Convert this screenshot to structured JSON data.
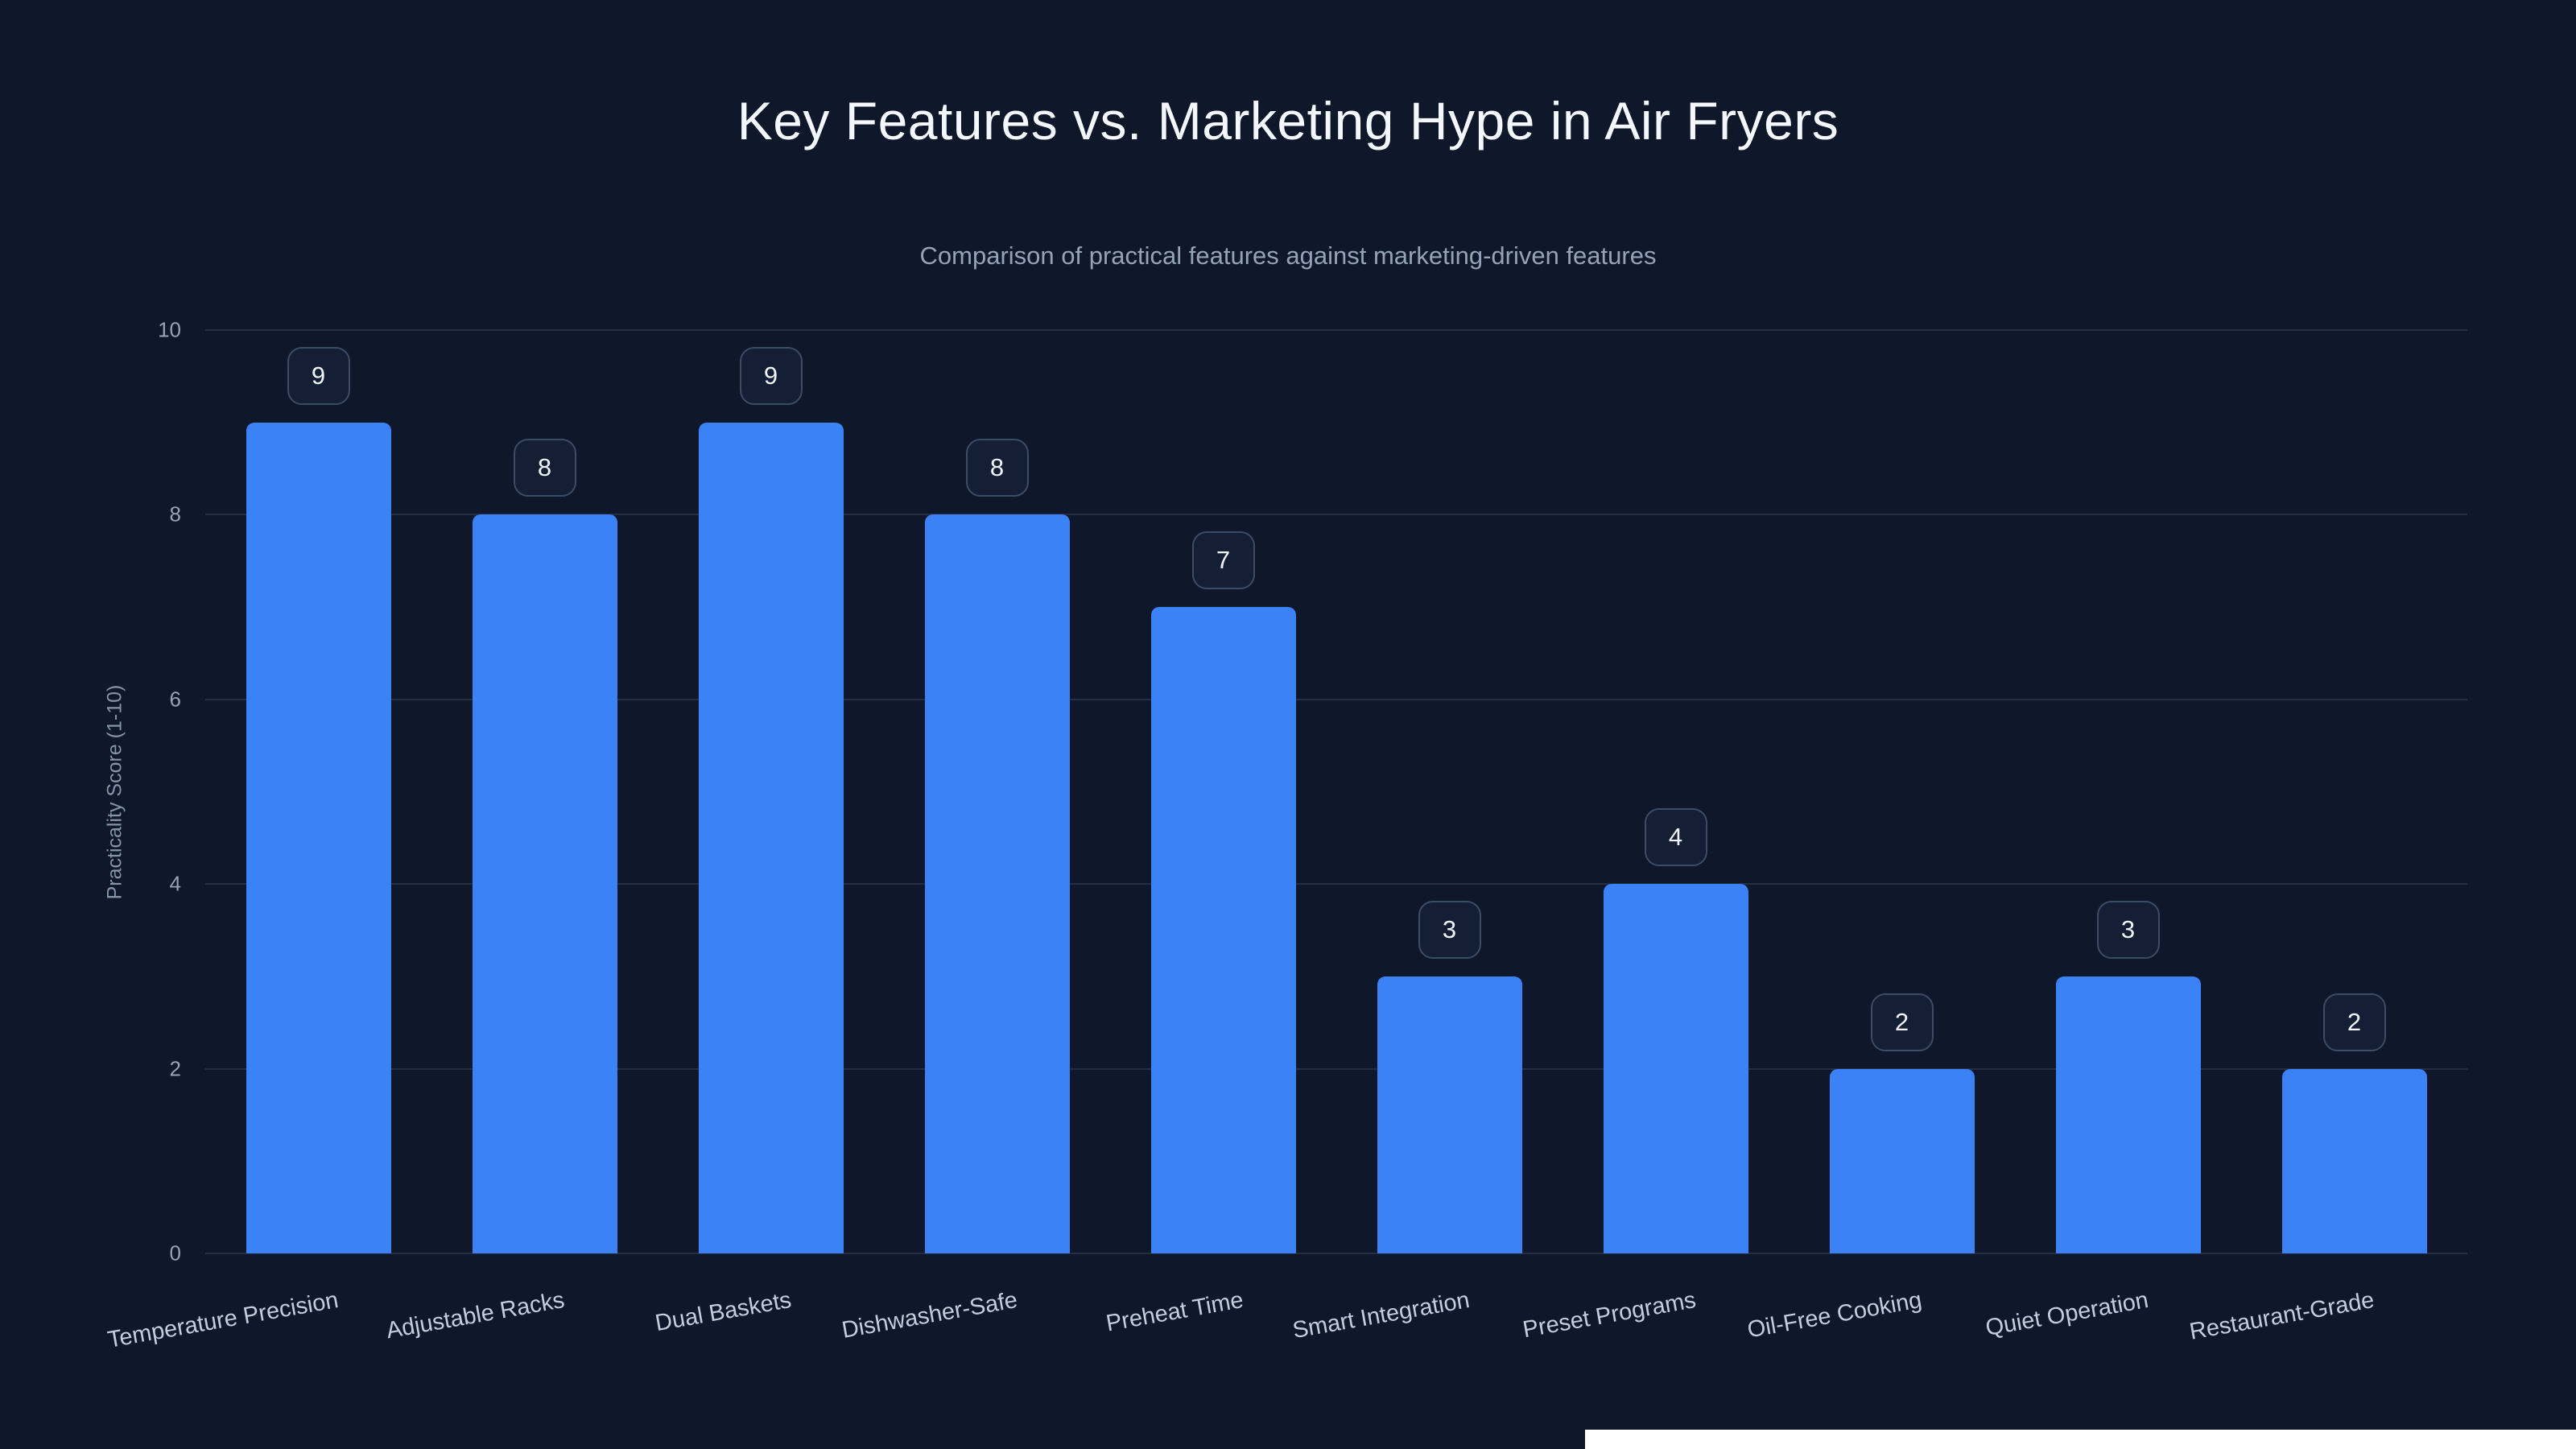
{
  "chart_data": {
    "type": "bar",
    "title": "Key Features vs. Marketing Hype in Air Fryers",
    "subtitle": "Comparison of practical features against marketing-driven features",
    "categories": [
      "Temperature Precision",
      "Adjustable Racks",
      "Dual Baskets",
      "Dishwasher-Safe",
      "Preheat Time",
      "Smart Integration",
      "Preset Programs",
      "Oil-Free Cooking",
      "Quiet Operation",
      "Restaurant-Grade"
    ],
    "values": [
      9,
      8,
      9,
      8,
      7,
      3,
      4,
      2,
      3,
      2
    ],
    "xlabel": "",
    "ylabel": "Practicality Score (1-10)",
    "ylim": [
      0,
      10
    ],
    "yticks": [
      0,
      2,
      4,
      6,
      8,
      10
    ],
    "grid": true,
    "legend": false,
    "data_labels_in_badges": true,
    "colors": {
      "bar": "#3b82f6",
      "background": "#0f172a",
      "title": "#f4f7fb",
      "subtitle": "#94a3b8",
      "axis_text": "#94a3b8",
      "badge_border": "#3c4c66",
      "badge_text": "#f1f5f9"
    }
  }
}
